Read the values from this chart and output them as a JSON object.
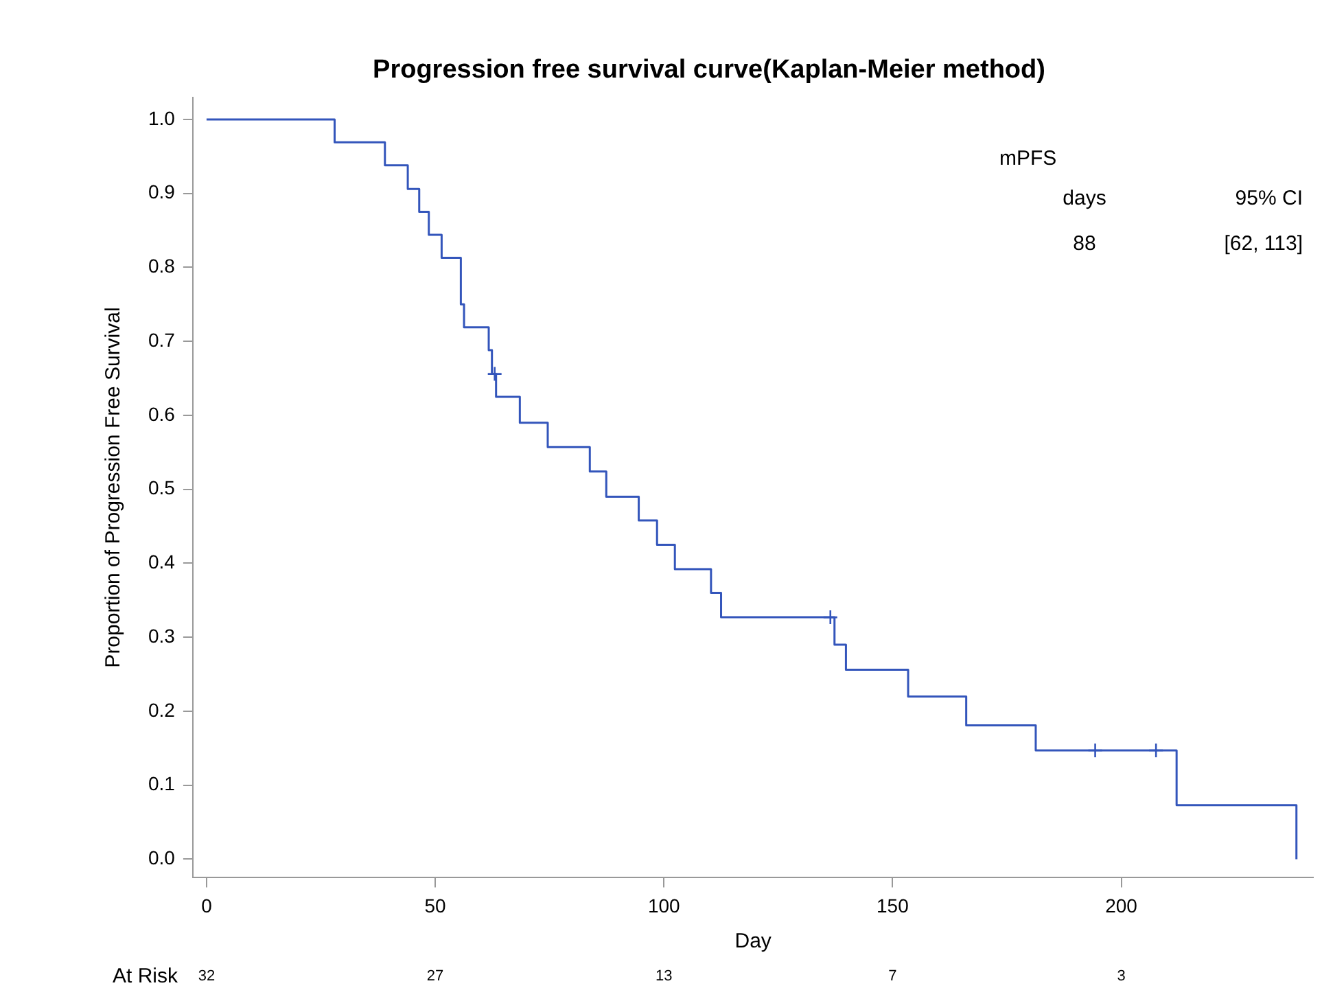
{
  "chart_data": {
    "type": "step",
    "title": "Progression free survival curve(Kaplan-Meier method)",
    "xlabel": "Day",
    "ylabel": "Proportion of Progression Free Survival",
    "series": [
      {
        "color": "#3355bb",
        "x": [
          0,
          28,
          39,
          44,
          46.5,
          48.6,
          51.4,
          55.6,
          56.3,
          61.7,
          62.4,
          63.3,
          68.5,
          74.6,
          83.8,
          87.4,
          94.5,
          98.5,
          102.4,
          110.3,
          112.5,
          137.3,
          139.8,
          153.4,
          166.1,
          181.3,
          212.1,
          238.3
        ],
        "values": [
          1.0,
          0.969,
          0.938,
          0.906,
          0.875,
          0.844,
          0.813,
          0.75,
          0.719,
          0.688,
          0.656,
          0.625,
          0.59,
          0.557,
          0.524,
          0.49,
          0.458,
          0.425,
          0.392,
          0.36,
          0.327,
          0.29,
          0.256,
          0.22,
          0.181,
          0.147,
          0.073,
          0.0
        ]
      },
      {
        "type": "scatter",
        "color": "#3355bb",
        "marker": "cross",
        "x": [
          63,
          136.4,
          194.3,
          207.6
        ],
        "values": [
          0.656,
          0.327,
          0.147,
          0.147
        ]
      }
    ],
    "xlim": [
      -3,
      242
    ],
    "xticks": [
      0,
      50,
      100,
      150,
      200
    ],
    "ylim": [
      -0.025,
      1.03
    ],
    "yticks": [
      {
        "value": 0,
        "label": "0.0"
      },
      {
        "value": 0.1,
        "label": "0.1"
      },
      {
        "value": 0.2,
        "label": "0.2"
      },
      {
        "value": 0.3,
        "label": "0.3"
      },
      {
        "value": 0.4,
        "label": "0.4"
      },
      {
        "value": 0.5,
        "label": "0.5"
      },
      {
        "value": 0.6,
        "label": "0.6"
      },
      {
        "value": 0.7,
        "label": "0.7"
      },
      {
        "value": 0.8,
        "label": "0.8"
      },
      {
        "value": 0.9,
        "label": "0.9"
      },
      {
        "value": 1.0,
        "label": "1.0"
      }
    ],
    "grid": false,
    "legend": false,
    "line_style": "solid",
    "annotations": [
      "mPFS",
      "days",
      "95% CI",
      "88",
      "[62, 113]",
      "At Risk",
      "32",
      "27",
      "13",
      "7",
      "3"
    ]
  }
}
